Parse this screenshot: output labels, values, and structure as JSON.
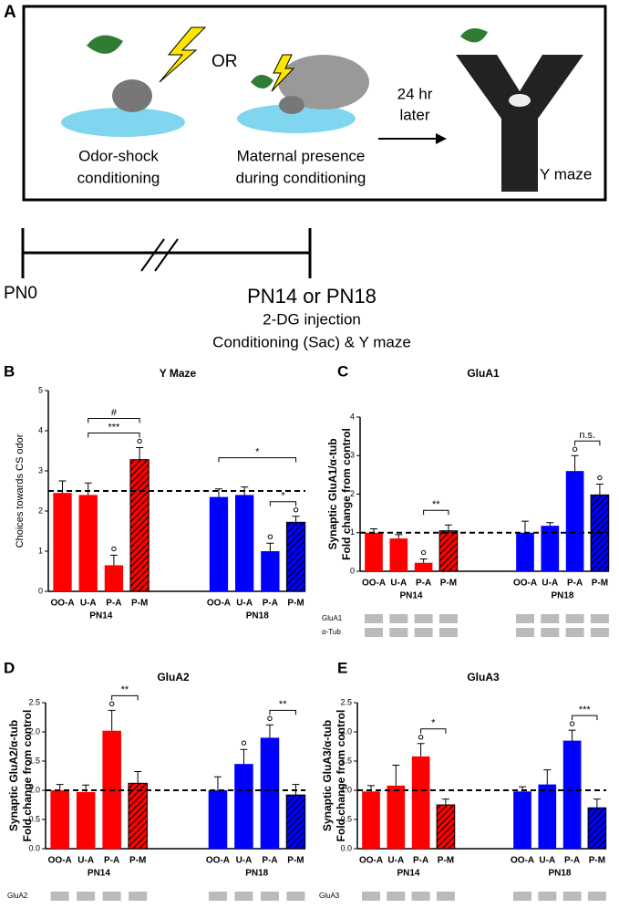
{
  "diagram": {
    "panel": "A",
    "or": "OR",
    "odor_shock": [
      "Odor-shock",
      "conditioning"
    ],
    "maternal": [
      "Maternal presence",
      "during conditioning"
    ],
    "later": [
      "24 hr",
      "later"
    ],
    "ymaze": "Y maze",
    "pn0": "PN0",
    "pn14": "PN14 or PN18",
    "injection": "2-DG injection",
    "conditioning": "Conditioning (Sac) & Y maze"
  },
  "chart_data": [
    {
      "type": "bar",
      "panel": "B",
      "title": "Y Maze",
      "ylabel": [
        "Choices towards CS odor"
      ],
      "categories": [
        "OO-A",
        "U-A",
        "P-A",
        "P-M",
        "OO-A",
        "U-A",
        "P-A",
        "P-M"
      ],
      "groups": [
        "PN14",
        "PN18"
      ],
      "values": [
        2.45,
        2.4,
        0.65,
        3.28,
        2.35,
        2.4,
        1.0,
        1.72
      ],
      "errors": [
        0.3,
        0.3,
        0.25,
        0.3,
        0.2,
        0.2,
        0.2,
        0.15
      ],
      "colors": [
        "#ff0000",
        "#ff0000",
        "#ff0000",
        "#ff0000",
        "#0000ff",
        "#0000ff",
        "#0000ff",
        "#0000ff"
      ],
      "hatched": [
        3,
        7
      ],
      "circled": [
        2,
        3,
        6,
        7
      ],
      "ref_line": 2.5,
      "ylim": [
        0,
        5
      ],
      "yticks": [
        0,
        1,
        2,
        3,
        4,
        5
      ],
      "annotations": [
        {
          "label": "***",
          "from": 1,
          "to": 3
        },
        {
          "label": "#",
          "from": 1,
          "to": 3
        },
        {
          "label": "*",
          "from": 6,
          "to": 7
        },
        {
          "label": "*",
          "from": 4,
          "to": 7
        }
      ],
      "blots": []
    },
    {
      "type": "bar",
      "panel": "C",
      "title": "GluA1",
      "ylabel": [
        "Synaptic GluA1/α-tub",
        "Fold change from control"
      ],
      "categories": [
        "OO-A",
        "U-A",
        "P-A",
        "P-M",
        "OO-A",
        "U-A",
        "P-A",
        "P-M"
      ],
      "groups": [
        "PN14",
        "PN18"
      ],
      "values": [
        1.0,
        0.85,
        0.22,
        1.05,
        1.0,
        1.18,
        2.6,
        1.98
      ],
      "errors": [
        0.1,
        0.1,
        0.1,
        0.15,
        0.3,
        0.08,
        0.4,
        0.28
      ],
      "colors": [
        "#ff0000",
        "#ff0000",
        "#ff0000",
        "#ff0000",
        "#0000ff",
        "#0000ff",
        "#0000ff",
        "#0000ff"
      ],
      "hatched": [
        3,
        7
      ],
      "circled": [
        2,
        6,
        7
      ],
      "ref_line": 1,
      "ylim": [
        0,
        4
      ],
      "yticks": [
        0,
        1,
        2,
        3,
        4
      ],
      "annotations": [
        {
          "label": "**",
          "from": 2,
          "to": 3
        },
        {
          "label": "n.s.",
          "from": 6,
          "to": 7
        }
      ],
      "blots": [
        "GluA1",
        "α-Tub"
      ]
    },
    {
      "type": "bar",
      "panel": "D",
      "title": "GluA2",
      "ylabel": [
        "Synaptic GluA2/α-tub",
        "Fold change from control"
      ],
      "categories": [
        "OO-A",
        "U-A",
        "P-A",
        "P-M",
        "OO-A",
        "U-A",
        "P-A",
        "P-M"
      ],
      "groups": [
        "PN14",
        "PN18"
      ],
      "values": [
        1.0,
        0.97,
        2.02,
        1.12,
        1.0,
        1.45,
        1.9,
        0.92
      ],
      "errors": [
        0.1,
        0.12,
        0.35,
        0.2,
        0.23,
        0.25,
        0.22,
        0.18
      ],
      "colors": [
        "#ff0000",
        "#ff0000",
        "#ff0000",
        "#ff0000",
        "#0000ff",
        "#0000ff",
        "#0000ff",
        "#0000ff"
      ],
      "hatched": [
        3,
        7
      ],
      "circled": [
        2,
        5,
        6
      ],
      "ref_line": 1,
      "ylim": [
        0,
        2.5
      ],
      "yticks": [
        {
          "value": 0,
          "label": "0.0"
        },
        0.5,
        {
          "value": 1,
          "label": "1.0"
        },
        1.5,
        {
          "value": 2,
          "label": "2.0"
        },
        2.5
      ],
      "annotations": [
        {
          "label": "**",
          "from": 2,
          "to": 3
        },
        {
          "label": "**",
          "from": 6,
          "to": 7
        }
      ],
      "blots": [
        "GluA2"
      ]
    },
    {
      "type": "bar",
      "panel": "E",
      "title": "GluA3",
      "ylabel": [
        "Synaptic GluA3/α-tub",
        "Fold change from control"
      ],
      "categories": [
        "OO-A",
        "U-A",
        "P-A",
        "P-M",
        "OO-A",
        "U-A",
        "P-A",
        "P-M"
      ],
      "groups": [
        "PN14",
        "PN18"
      ],
      "values": [
        0.98,
        1.08,
        1.58,
        0.75,
        0.98,
        1.1,
        1.85,
        0.7
      ],
      "errors": [
        0.1,
        0.35,
        0.22,
        0.1,
        0.08,
        0.25,
        0.18,
        0.15
      ],
      "colors": [
        "#ff0000",
        "#ff0000",
        "#ff0000",
        "#ff0000",
        "#0000ff",
        "#0000ff",
        "#0000ff",
        "#0000ff"
      ],
      "hatched": [
        3,
        7
      ],
      "circled": [
        2,
        6
      ],
      "ref_line": 1,
      "ylim": [
        0,
        2.5
      ],
      "yticks": [
        {
          "value": 0,
          "label": "0.0"
        },
        0.5,
        {
          "value": 1,
          "label": "1.0"
        },
        1.5,
        {
          "value": 2,
          "label": "2.0"
        },
        2.5
      ],
      "annotations": [
        {
          "label": "*",
          "from": 2,
          "to": 3
        },
        {
          "label": "***",
          "from": 6,
          "to": 7
        }
      ],
      "blots": [
        "GluA3"
      ]
    }
  ]
}
